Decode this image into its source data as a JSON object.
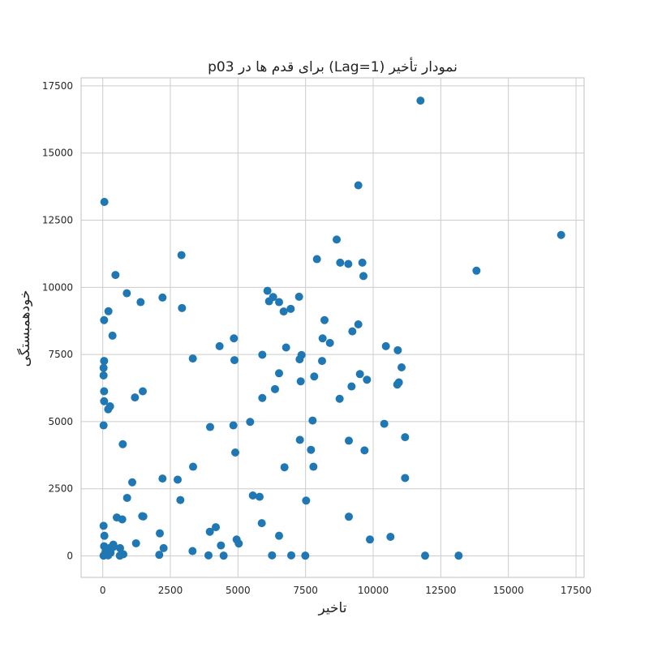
{
  "chart_data": {
    "type": "scatter",
    "title": "نمودار تأخیر (Lag=1) برای قدم ها در p03",
    "xlabel": "تاخیر",
    "ylabel": "خودهمبستگی",
    "xlim": [
      -800,
      17800
    ],
    "ylim": [
      -800,
      17800
    ],
    "xticks": [
      0,
      2500,
      5000,
      7500,
      10000,
      12500,
      15000,
      17500
    ],
    "yticks": [
      0,
      2500,
      5000,
      7500,
      10000,
      12500,
      15000,
      17500
    ],
    "grid": true,
    "marker_color": "#1f77b4",
    "points": [
      [
        11750,
        16950
      ],
      [
        16950,
        11950
      ],
      [
        9450,
        13800
      ],
      [
        60,
        13180
      ],
      [
        8650,
        11780
      ],
      [
        2910,
        11200
      ],
      [
        13820,
        10620
      ],
      [
        470,
        10460
      ],
      [
        7920,
        11050
      ],
      [
        8780,
        10920
      ],
      [
        9600,
        10920
      ],
      [
        9080,
        10870
      ],
      [
        9640,
        10420
      ],
      [
        6090,
        9870
      ],
      [
        2210,
        9620
      ],
      [
        890,
        9780
      ],
      [
        6300,
        9640
      ],
      [
        7260,
        9650
      ],
      [
        6150,
        9480
      ],
      [
        6520,
        9450
      ],
      [
        1400,
        9450
      ],
      [
        6950,
        9200
      ],
      [
        6690,
        9100
      ],
      [
        2930,
        9230
      ],
      [
        210,
        9110
      ],
      [
        50,
        8780
      ],
      [
        8200,
        8780
      ],
      [
        9450,
        8620
      ],
      [
        9230,
        8360
      ],
      [
        360,
        8200
      ],
      [
        4850,
        8100
      ],
      [
        8130,
        8100
      ],
      [
        8400,
        7930
      ],
      [
        4320,
        7810
      ],
      [
        10470,
        7810
      ],
      [
        10910,
        7660
      ],
      [
        6780,
        7760
      ],
      [
        5900,
        7490
      ],
      [
        7350,
        7480
      ],
      [
        7280,
        7320
      ],
      [
        3330,
        7350
      ],
      [
        4870,
        7290
      ],
      [
        8110,
        7260
      ],
      [
        50,
        7260
      ],
      [
        11050,
        7020
      ],
      [
        30,
        7000
      ],
      [
        6520,
        6800
      ],
      [
        9510,
        6770
      ],
      [
        30,
        6720
      ],
      [
        7820,
        6680
      ],
      [
        9770,
        6560
      ],
      [
        7320,
        6500
      ],
      [
        10950,
        6460
      ],
      [
        10890,
        6380
      ],
      [
        9200,
        6310
      ],
      [
        6370,
        6210
      ],
      [
        1480,
        6130
      ],
      [
        50,
        6130
      ],
      [
        1190,
        5900
      ],
      [
        5900,
        5880
      ],
      [
        8760,
        5850
      ],
      [
        50,
        5760
      ],
      [
        270,
        5570
      ],
      [
        200,
        5460
      ],
      [
        7760,
        5040
      ],
      [
        5450,
        4990
      ],
      [
        10410,
        4920
      ],
      [
        30,
        4860
      ],
      [
        4830,
        4860
      ],
      [
        3970,
        4800
      ],
      [
        11180,
        4420
      ],
      [
        7290,
        4320
      ],
      [
        9100,
        4290
      ],
      [
        740,
        4160
      ],
      [
        7700,
        3950
      ],
      [
        9680,
        3930
      ],
      [
        4900,
        3850
      ],
      [
        3340,
        3320
      ],
      [
        6720,
        3300
      ],
      [
        7790,
        3320
      ],
      [
        11180,
        2900
      ],
      [
        2210,
        2880
      ],
      [
        2770,
        2840
      ],
      [
        1090,
        2740
      ],
      [
        5550,
        2250
      ],
      [
        5800,
        2200
      ],
      [
        900,
        2160
      ],
      [
        2870,
        2080
      ],
      [
        7520,
        2060
      ],
      [
        1460,
        1480
      ],
      [
        1500,
        1470
      ],
      [
        9100,
        1460
      ],
      [
        520,
        1430
      ],
      [
        720,
        1360
      ],
      [
        30,
        1120
      ],
      [
        5880,
        1220
      ],
      [
        4180,
        1070
      ],
      [
        3960,
        900
      ],
      [
        2110,
        840
      ],
      [
        60,
        750
      ],
      [
        6520,
        750
      ],
      [
        10640,
        710
      ],
      [
        4950,
        610
      ],
      [
        9880,
        610
      ],
      [
        1230,
        470
      ],
      [
        5030,
        460
      ],
      [
        390,
        420
      ],
      [
        4370,
        390
      ],
      [
        50,
        360
      ],
      [
        380,
        330
      ],
      [
        270,
        300
      ],
      [
        2250,
        290
      ],
      [
        640,
        290
      ],
      [
        170,
        220
      ],
      [
        100,
        150
      ],
      [
        3320,
        180
      ],
      [
        290,
        120
      ],
      [
        760,
        60
      ],
      [
        2090,
        40
      ],
      [
        3910,
        20
      ],
      [
        6260,
        20
      ],
      [
        6970,
        20
      ],
      [
        30,
        10
      ],
      [
        200,
        20
      ],
      [
        630,
        10
      ],
      [
        4470,
        10
      ],
      [
        7490,
        10
      ],
      [
        11920,
        10
      ],
      [
        13160,
        10
      ]
    ]
  }
}
